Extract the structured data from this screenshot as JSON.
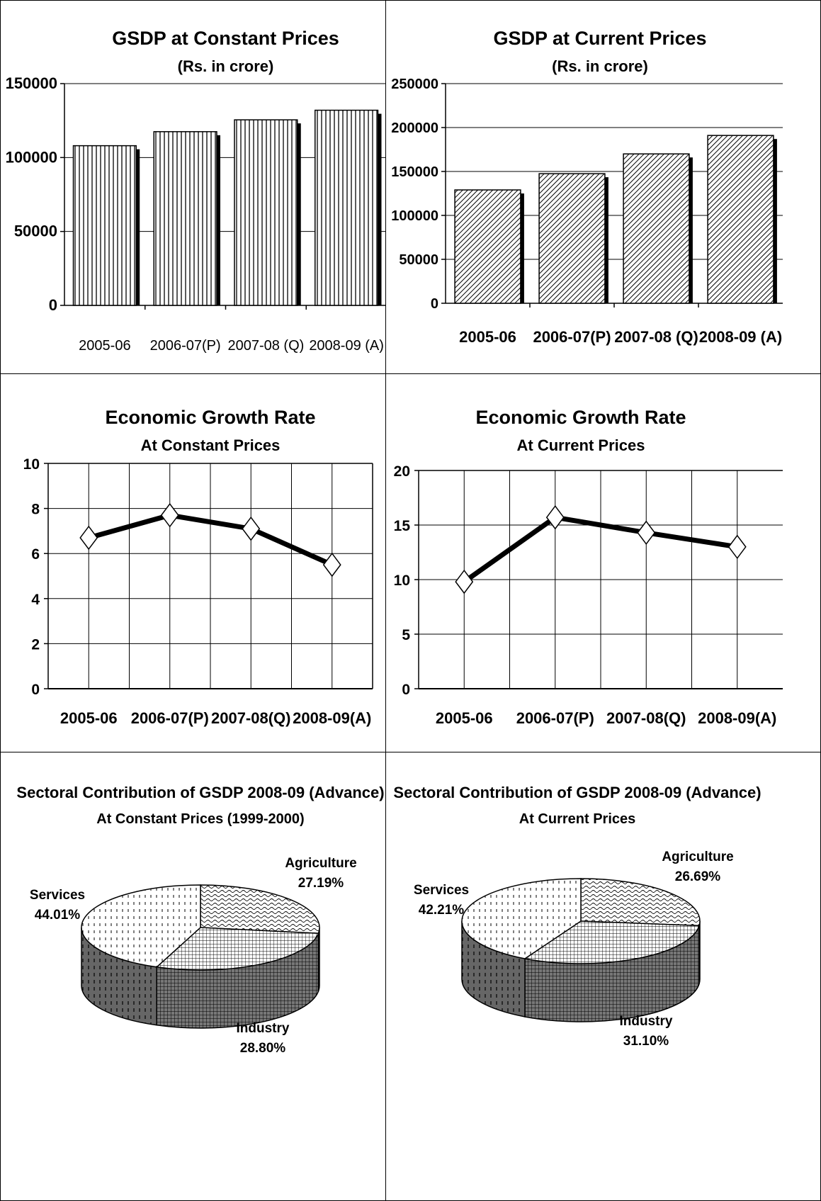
{
  "charts": [
    {
      "id": "gsdp-constant",
      "chart_data": {
        "type": "bar",
        "title": "GSDP at Constant Prices",
        "subtitle": "(Rs. in crore)",
        "categories": [
          "2005-06",
          "2006-07(P)",
          "2007-08 (Q)",
          "2008-09 (A)"
        ],
        "values": [
          108000,
          117500,
          125500,
          132000
        ],
        "ylim": [
          0,
          150000
        ],
        "yticks": [
          "0",
          "50000",
          "100000",
          "150000"
        ],
        "grid": true,
        "pattern": "vertical-lines"
      }
    },
    {
      "id": "gsdp-current",
      "chart_data": {
        "type": "bar",
        "title": "GSDP at Current Prices",
        "subtitle": "(Rs. in crore)",
        "categories": [
          "2005-06",
          "2006-07(P)",
          "2007-08 (Q)",
          "2008-09 (A)"
        ],
        "values": [
          129000,
          147500,
          170000,
          191000
        ],
        "ylim": [
          0,
          250000
        ],
        "yticks": [
          "0",
          "50000",
          "100000",
          "150000",
          "200000",
          "250000"
        ],
        "grid": true,
        "pattern": "diagonal-lines"
      }
    },
    {
      "id": "growth-constant",
      "chart_data": {
        "type": "line",
        "title": "Economic Growth Rate",
        "subtitle": "At Constant Prices",
        "categories": [
          "2005-06",
          "2006-07(P)",
          "2007-08(Q)",
          "2008-09(A)"
        ],
        "values": [
          6.7,
          7.7,
          7.1,
          5.5
        ],
        "ylim": [
          0,
          10
        ],
        "yticks": [
          "0",
          "2",
          "4",
          "6",
          "8",
          "10"
        ],
        "grid": true
      }
    },
    {
      "id": "growth-current",
      "chart_data": {
        "type": "line",
        "title": "Economic Growth Rate",
        "subtitle": "At Current Prices",
        "categories": [
          "2005-06",
          "2006-07(P)",
          "2007-08(Q)",
          "2008-09(A)"
        ],
        "values": [
          9.8,
          15.7,
          14.3,
          13.0
        ],
        "ylim": [
          0,
          20
        ],
        "yticks": [
          "0",
          "5",
          "10",
          "15",
          "20"
        ],
        "grid": true
      }
    },
    {
      "id": "sectoral-constant",
      "chart_data": {
        "type": "pie",
        "title": "Sectoral Contribution of GSDP 2008-09 (Advance)",
        "subtitle": "At Constant Prices (1999-2000)",
        "slices": [
          {
            "name": "Agriculture",
            "label": "27.19%",
            "value": 27.19
          },
          {
            "name": "Industry",
            "label": "28.80%",
            "value": 28.8
          },
          {
            "name": "Services",
            "label": "44.01%",
            "value": 44.01
          }
        ]
      }
    },
    {
      "id": "sectoral-current",
      "chart_data": {
        "type": "pie",
        "title": "Sectoral Contribution of GSDP 2008-09 (Advance)",
        "subtitle": "At Current Prices",
        "slices": [
          {
            "name": "Agriculture",
            "label": "26.69%",
            "value": 26.69
          },
          {
            "name": "Industry",
            "label": "31.10%",
            "value": 31.1
          },
          {
            "name": "Services",
            "label": "42.21%",
            "value": 42.21
          }
        ]
      }
    }
  ]
}
